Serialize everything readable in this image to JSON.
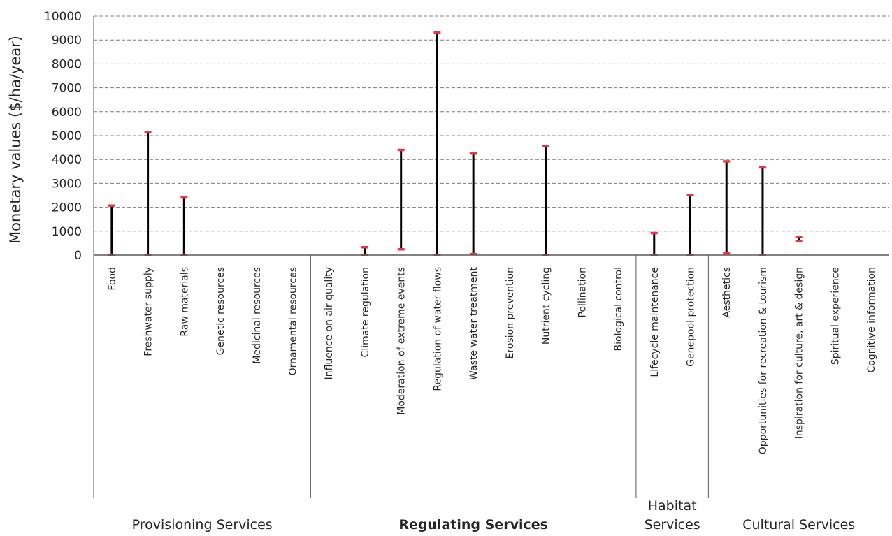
{
  "chart_data": {
    "type": "error-bar range",
    "ylabel": "Monetary values ($/ha/year)",
    "ylim": [
      0,
      10000
    ],
    "yticks": [
      "0",
      "1000",
      "2000",
      "3000",
      "4000",
      "5000",
      "6000",
      "7000",
      "8000",
      "9000",
      "10000"
    ],
    "grid": true,
    "range_color": "#000000",
    "cap_color": "#e8383d",
    "categories": [
      "Food",
      "Freshwater supply",
      "Raw materials",
      "Genetic resources",
      "Medicinal resources",
      "Ornamental resources",
      "Influence on air quality",
      "Climate regulation",
      "Moderation of extreme events",
      "Regulation of water flows",
      "Waste water treatment",
      "Erosion prevention",
      "Nutrient cycling",
      "Pollination",
      "Biological control",
      "Lifecycle maintenance",
      "Genepool protection",
      "Aesthetics",
      "Opportunities for recreation & tourism",
      "Inspiration for culture, art & design",
      "Spiritual experience",
      "Cognitive information"
    ],
    "ranges": [
      {
        "category": "Food",
        "min": 0,
        "max": 2070
      },
      {
        "category": "Freshwater supply",
        "min": 0,
        "max": 5150
      },
      {
        "category": "Raw materials",
        "min": 0,
        "max": 2410
      },
      {
        "category": "Genetic resources",
        "min": null,
        "max": null
      },
      {
        "category": "Medicinal resources",
        "min": null,
        "max": null
      },
      {
        "category": "Ornamental resources",
        "min": null,
        "max": null
      },
      {
        "category": "Influence on air quality",
        "min": null,
        "max": null
      },
      {
        "category": "Climate regulation",
        "min": 0,
        "max": 330
      },
      {
        "category": "Moderation of extreme events",
        "min": 240,
        "max": 4400
      },
      {
        "category": "Regulation of water flows",
        "min": 0,
        "max": 9320
      },
      {
        "category": "Waste water treatment",
        "min": 40,
        "max": 4250
      },
      {
        "category": "Erosion prevention",
        "min": null,
        "max": null
      },
      {
        "category": "Nutrient cycling",
        "min": 0,
        "max": 4570
      },
      {
        "category": "Pollination",
        "min": null,
        "max": null
      },
      {
        "category": "Biological control",
        "min": null,
        "max": null
      },
      {
        "category": "Lifecycle maintenance",
        "min": 0,
        "max": 920
      },
      {
        "category": "Genepool protection",
        "min": 0,
        "max": 2510
      },
      {
        "category": "Aesthetics",
        "min": 70,
        "max": 3920
      },
      {
        "category": "Opportunities for recreation & tourism",
        "min": 0,
        "max": 3670
      },
      {
        "category": "Inspiration for culture, art & design",
        "min": 580,
        "max": 760
      },
      {
        "category": "Spiritual experience",
        "min": null,
        "max": null
      },
      {
        "category": "Cognitive information",
        "min": null,
        "max": null
      }
    ],
    "groups": [
      {
        "name": "Provisioning Services",
        "lines": [
          "Provisioning Services"
        ],
        "start": 0,
        "end": 5,
        "bold": false
      },
      {
        "name": "Regulating Services",
        "lines": [
          "Regulating Services"
        ],
        "start": 6,
        "end": 14,
        "bold": true
      },
      {
        "name": "Habitat Services",
        "lines": [
          "Habitat",
          "Services"
        ],
        "start": 15,
        "end": 16,
        "bold": false
      },
      {
        "name": "Cultural Services",
        "lines": [
          "Cultural Services"
        ],
        "start": 17,
        "end": 21,
        "bold": false
      }
    ]
  }
}
